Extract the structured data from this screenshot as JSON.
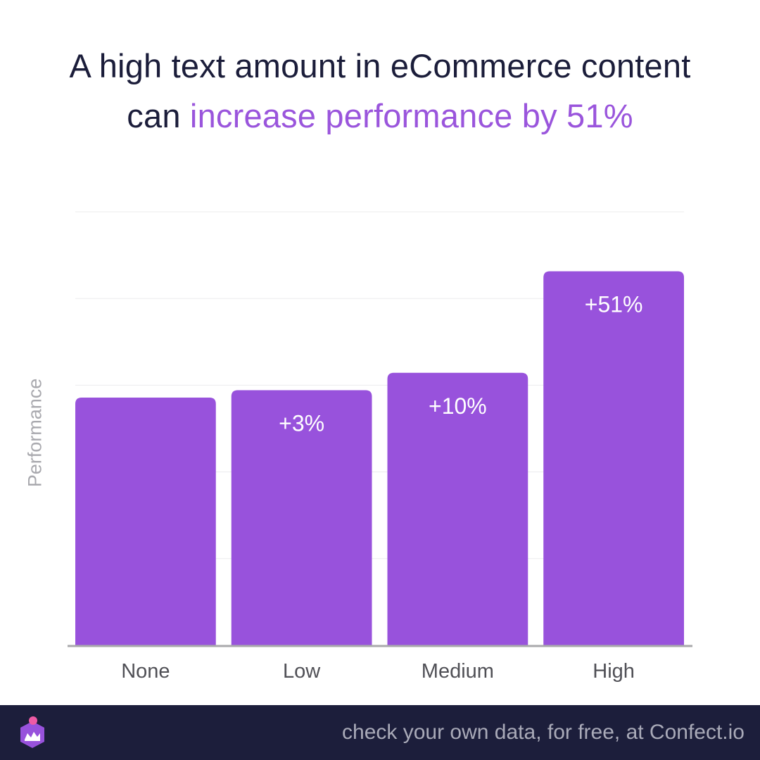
{
  "title": {
    "line1": "A high text amount in eCommerce content",
    "line2_prefix": "can ",
    "line2_highlight": "increase performance by 51%"
  },
  "chart_data": {
    "type": "bar",
    "categories": [
      "None",
      "Low",
      "Medium",
      "High"
    ],
    "values": [
      100,
      103,
      110,
      151
    ],
    "data_labels": [
      "",
      "+3%",
      "+10%",
      "+51%"
    ],
    "ylabel": "Performance",
    "xlabel": "",
    "ylim": [
      0,
      175
    ],
    "grid": true
  },
  "footer": {
    "text": "check your own data, for free, at Confect.io",
    "logo_icon": "confect-logo-icon"
  },
  "colors": {
    "bar": "#9852dc",
    "accent": "#9a55dc",
    "title": "#1b1d3a",
    "footer_bg": "#1c1e3b",
    "footer_text": "#a9aab8",
    "logo_dot": "#ee5aa4"
  }
}
